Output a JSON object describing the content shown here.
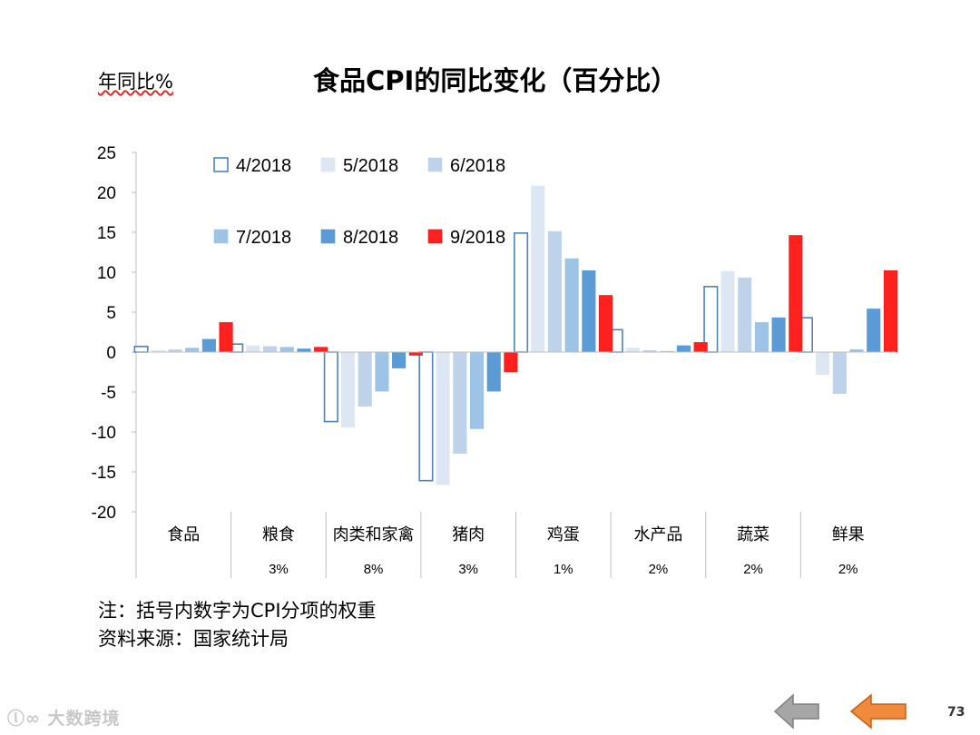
{
  "header": {
    "unit_label": "年同比%",
    "title": "食品CPI的同比变化（百分比）"
  },
  "chart_data": {
    "type": "bar",
    "title": "食品CPI的同比变化（百分比）",
    "ylabel": "年同比%",
    "ylim": [
      -20,
      25
    ],
    "yticks": [
      25,
      20,
      15,
      10,
      5,
      0,
      -5,
      -10,
      -15,
      -20
    ],
    "categories": [
      "食品",
      "粮食",
      "肉类和家禽",
      "猪肉",
      "鸡蛋",
      "水产品",
      "蔬菜",
      "鲜果"
    ],
    "weights": [
      "",
      "3%",
      "8%",
      "3%",
      "1%",
      "2%",
      "2%",
      "2%"
    ],
    "series": [
      {
        "name": "4/2018",
        "color": "#ffffff",
        "stroke": "#4f81bd",
        "values": [
          0.7,
          1.0,
          -8.7,
          -16.1,
          14.9,
          2.8,
          8.2,
          4.3
        ]
      },
      {
        "name": "5/2018",
        "color": "#dde7f4",
        "stroke": "#dde7f4",
        "values": [
          0.2,
          0.8,
          -9.4,
          -16.6,
          20.8,
          0.5,
          10.1,
          -2.8
        ]
      },
      {
        "name": "6/2018",
        "color": "#bed3ea",
        "stroke": "#bed3ea",
        "values": [
          0.3,
          0.7,
          -6.8,
          -12.7,
          15.1,
          0.2,
          9.3,
          -5.2
        ]
      },
      {
        "name": "7/2018",
        "color": "#9dc3e6",
        "stroke": "#9dc3e6",
        "values": [
          0.5,
          0.6,
          -4.9,
          -9.6,
          11.7,
          0.1,
          3.7,
          0.3
        ]
      },
      {
        "name": "8/2018",
        "color": "#5b9bd5",
        "stroke": "#5b9bd5",
        "values": [
          1.6,
          0.4,
          -2.0,
          -4.9,
          10.2,
          0.8,
          4.3,
          5.4
        ]
      },
      {
        "name": "9/2018",
        "color": "#ff2020",
        "stroke": "#e01818",
        "values": [
          3.7,
          0.6,
          -0.4,
          -2.5,
          7.1,
          1.2,
          14.6,
          10.2
        ]
      }
    ],
    "legend": "top-left inside plot, two rows"
  },
  "notes": {
    "line1": "注：括号内数字为CPI分项的权重",
    "line2": "资料来源：国家统计局"
  },
  "footer": {
    "watermark": "大数跨境",
    "page_number": "73",
    "back_icon": "gray-left-arrow",
    "prev_icon": "orange-left-arrow",
    "back_color": "#a6a6a6",
    "prev_color": "#f08a3c"
  }
}
